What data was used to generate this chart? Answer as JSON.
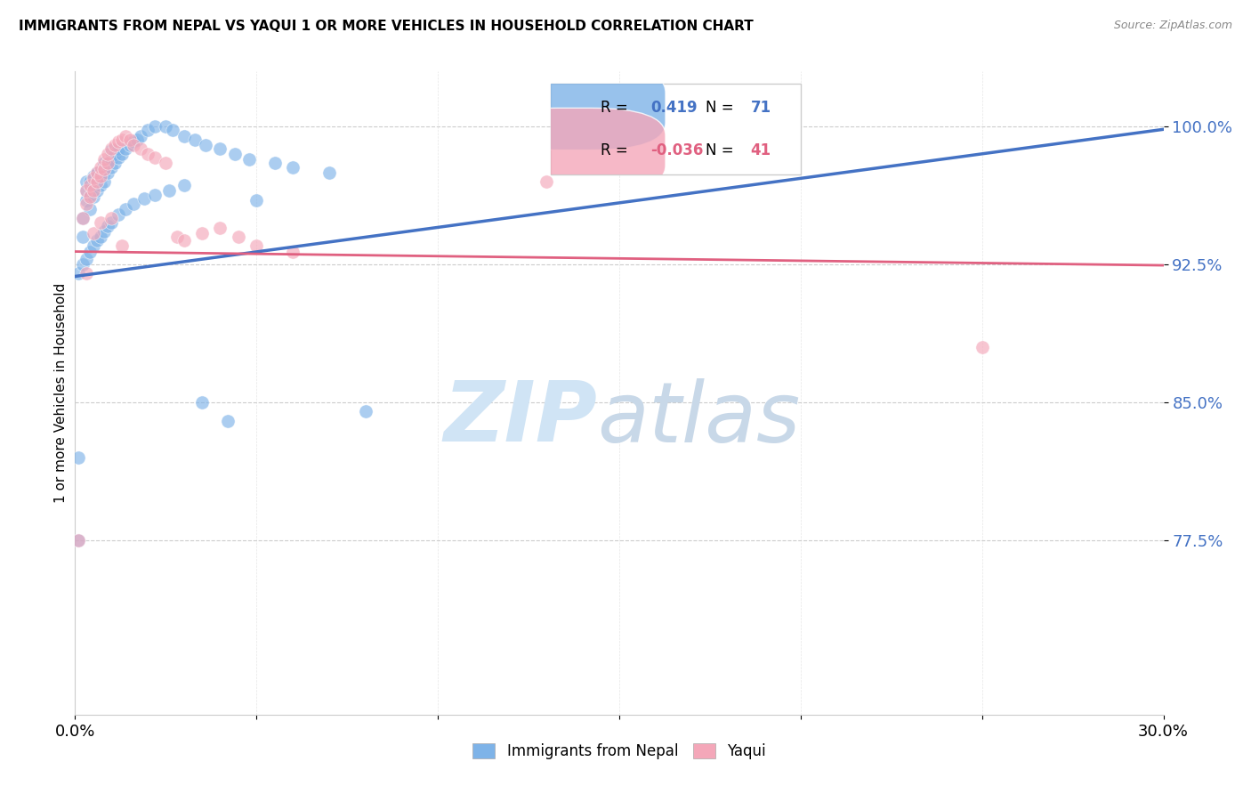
{
  "title": "IMMIGRANTS FROM NEPAL VS YAQUI 1 OR MORE VEHICLES IN HOUSEHOLD CORRELATION CHART",
  "source": "Source: ZipAtlas.com",
  "ylabel": "1 or more Vehicles in Household",
  "y_tick_labels": [
    "77.5%",
    "85.0%",
    "92.5%",
    "100.0%"
  ],
  "y_tick_values": [
    0.775,
    0.85,
    0.925,
    1.0
  ],
  "x_range": [
    0.0,
    0.3
  ],
  "y_range": [
    0.68,
    1.03
  ],
  "legend_nepal_R": "0.419",
  "legend_nepal_N": "71",
  "legend_yaqui_R": "-0.036",
  "legend_yaqui_N": "41",
  "color_nepal": "#7EB3E8",
  "color_yaqui": "#F4A7B9",
  "color_nepal_line": "#4472C4",
  "color_yaqui_line": "#E06080",
  "nepal_trend_x": [
    0.0,
    0.3
  ],
  "nepal_trend_y": [
    0.9185,
    0.9985
  ],
  "yaqui_trend_x": [
    0.0,
    0.3
  ],
  "yaqui_trend_y": [
    0.932,
    0.9245
  ],
  "nepal_x": [
    0.001,
    0.002,
    0.002,
    0.003,
    0.003,
    0.003,
    0.004,
    0.004,
    0.004,
    0.005,
    0.005,
    0.005,
    0.006,
    0.006,
    0.006,
    0.007,
    0.007,
    0.008,
    0.008,
    0.008,
    0.009,
    0.009,
    0.01,
    0.01,
    0.01,
    0.011,
    0.011,
    0.012,
    0.012,
    0.013,
    0.014,
    0.015,
    0.016,
    0.017,
    0.018,
    0.02,
    0.022,
    0.025,
    0.027,
    0.03,
    0.033,
    0.036,
    0.04,
    0.044,
    0.048,
    0.055,
    0.06,
    0.07,
    0.08,
    0.001,
    0.002,
    0.003,
    0.004,
    0.005,
    0.006,
    0.007,
    0.008,
    0.009,
    0.01,
    0.012,
    0.014,
    0.016,
    0.019,
    0.022,
    0.026,
    0.03,
    0.035,
    0.042,
    0.05,
    0.001
  ],
  "nepal_y": [
    0.775,
    0.94,
    0.95,
    0.96,
    0.965,
    0.97,
    0.955,
    0.963,
    0.97,
    0.962,
    0.967,
    0.973,
    0.965,
    0.97,
    0.975,
    0.968,
    0.972,
    0.97,
    0.975,
    0.98,
    0.975,
    0.98,
    0.978,
    0.982,
    0.987,
    0.98,
    0.985,
    0.983,
    0.988,
    0.985,
    0.988,
    0.99,
    0.992,
    0.993,
    0.995,
    0.998,
    1.0,
    1.0,
    0.998,
    0.995,
    0.993,
    0.99,
    0.988,
    0.985,
    0.982,
    0.98,
    0.978,
    0.975,
    0.845,
    0.92,
    0.925,
    0.928,
    0.932,
    0.935,
    0.938,
    0.94,
    0.943,
    0.946,
    0.948,
    0.952,
    0.955,
    0.958,
    0.961,
    0.963,
    0.965,
    0.968,
    0.85,
    0.84,
    0.96,
    0.82
  ],
  "yaqui_x": [
    0.001,
    0.002,
    0.003,
    0.003,
    0.004,
    0.004,
    0.005,
    0.005,
    0.006,
    0.006,
    0.007,
    0.007,
    0.008,
    0.008,
    0.009,
    0.009,
    0.01,
    0.011,
    0.012,
    0.013,
    0.014,
    0.015,
    0.016,
    0.018,
    0.02,
    0.022,
    0.025,
    0.028,
    0.03,
    0.035,
    0.04,
    0.045,
    0.05,
    0.06,
    0.13,
    0.25,
    0.003,
    0.005,
    0.007,
    0.01,
    0.013
  ],
  "yaqui_y": [
    0.775,
    0.95,
    0.958,
    0.965,
    0.962,
    0.968,
    0.965,
    0.972,
    0.97,
    0.975,
    0.973,
    0.978,
    0.977,
    0.982,
    0.98,
    0.985,
    0.988,
    0.99,
    0.992,
    0.993,
    0.995,
    0.993,
    0.99,
    0.988,
    0.985,
    0.983,
    0.98,
    0.94,
    0.938,
    0.942,
    0.945,
    0.94,
    0.935,
    0.932,
    0.97,
    0.88,
    0.92,
    0.942,
    0.948,
    0.95,
    0.935
  ]
}
